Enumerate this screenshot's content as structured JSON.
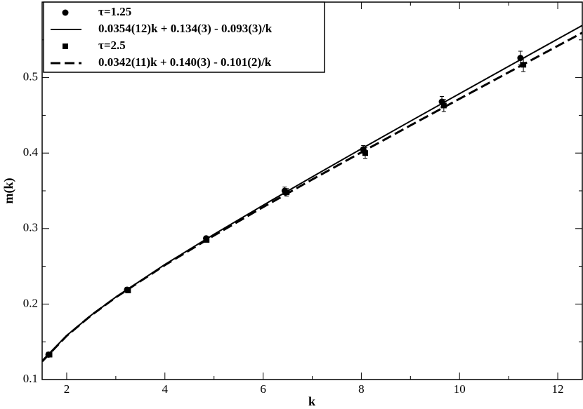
{
  "chart_data": {
    "type": "scatter",
    "x_label": "k",
    "y_label": "m(k)",
    "xlim": [
      1.5,
      12.5
    ],
    "ylim": [
      0.1,
      0.6
    ],
    "xticks": [
      2,
      4,
      6,
      8,
      10,
      12
    ],
    "yticks": [
      0.1,
      0.2,
      0.3,
      0.4,
      0.5
    ],
    "xminorticks": [
      3,
      5,
      7,
      9,
      11
    ],
    "yminorticks": [
      0.15,
      0.25,
      0.35,
      0.45,
      0.55
    ],
    "legend": "top-left",
    "series": [
      {
        "name": "τ=1.25",
        "marker": "circle",
        "color": "#000000",
        "x": [
          1.63,
          3.23,
          4.84,
          6.44,
          8.04,
          9.64,
          11.24
        ],
        "values": [
          0.133,
          0.219,
          0.287,
          0.35,
          0.405,
          0.468,
          0.526
        ],
        "errors": [
          0.003,
          0.003,
          0.003,
          0.005,
          0.005,
          0.007,
          0.009
        ]
      },
      {
        "name": "0.0354(12)k + 0.134(3) - 0.093(3)/k",
        "line": "solid",
        "color": "#000000",
        "x": [
          1.5,
          2,
          2.5,
          3,
          4,
          5,
          6,
          7,
          8,
          9,
          10,
          11,
          12,
          12.5
        ],
        "values": [
          0.1251,
          0.1583,
          0.1853,
          0.2092,
          0.2524,
          0.2924,
          0.3309,
          0.3685,
          0.4056,
          0.4423,
          0.4787,
          0.515,
          0.5511,
          0.5691
        ]
      },
      {
        "name": "τ=2.5",
        "marker": "square",
        "color": "#000000",
        "x": [
          1.65,
          3.25,
          4.85,
          6.48,
          8.08,
          9.68,
          11.3
        ],
        "values": [
          0.133,
          0.218,
          0.285,
          0.348,
          0.4,
          0.463,
          0.517
        ],
        "errors": [
          0.002,
          0.003,
          0.003,
          0.005,
          0.007,
          0.008,
          0.009
        ]
      },
      {
        "name": "0.0342(11)k + 0.140(3) - 0.101(2)/k",
        "line": "dashed",
        "color": "#000000",
        "x": [
          1.5,
          2,
          2.5,
          3,
          4,
          5,
          6,
          7,
          8,
          9,
          10,
          11,
          12,
          12.5
        ],
        "values": [
          0.124,
          0.1579,
          0.1851,
          0.2089,
          0.2516,
          0.2908,
          0.3284,
          0.365,
          0.401,
          0.4366,
          0.4719,
          0.507,
          0.542,
          0.5594
        ]
      }
    ]
  }
}
